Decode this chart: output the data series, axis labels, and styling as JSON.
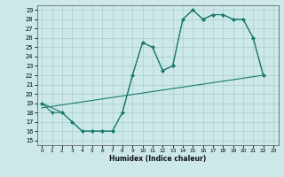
{
  "title": "",
  "xlabel": "Humidex (Indice chaleur)",
  "xlim": [
    -0.5,
    23.5
  ],
  "ylim": [
    14.5,
    29.5
  ],
  "yticks": [
    15,
    16,
    17,
    18,
    19,
    20,
    21,
    22,
    23,
    24,
    25,
    26,
    27,
    28,
    29
  ],
  "xticks": [
    0,
    1,
    2,
    3,
    4,
    5,
    6,
    7,
    8,
    9,
    10,
    11,
    12,
    13,
    14,
    15,
    16,
    17,
    18,
    19,
    20,
    21,
    22,
    23
  ],
  "bg_color": "#cce8e8",
  "line_color": "#1a7a6e",
  "line1_x": [
    0,
    1,
    2,
    3,
    4,
    5,
    6,
    7,
    8,
    9,
    10,
    11,
    12,
    13,
    14,
    15,
    16,
    17,
    18,
    19,
    20,
    21,
    22
  ],
  "line1_y": [
    19,
    18,
    18,
    17,
    16,
    16,
    16,
    16,
    18,
    22,
    25.5,
    25,
    22.5,
    23,
    28,
    29,
    28,
    28.5,
    28.5,
    28,
    28,
    26,
    22
  ],
  "line2_x": [
    0,
    2,
    3,
    4,
    5,
    6,
    7,
    8,
    9,
    10,
    11,
    12,
    13,
    14,
    15,
    16,
    17,
    18,
    19,
    20,
    21,
    22
  ],
  "line2_y": [
    19,
    18,
    17,
    16,
    16,
    16,
    16,
    18,
    22,
    25.5,
    25,
    22.5,
    23,
    28,
    29,
    28,
    28.5,
    28.5,
    28,
    28,
    26,
    22
  ],
  "line3_x": [
    0,
    22
  ],
  "line3_y": [
    18.5,
    22
  ]
}
